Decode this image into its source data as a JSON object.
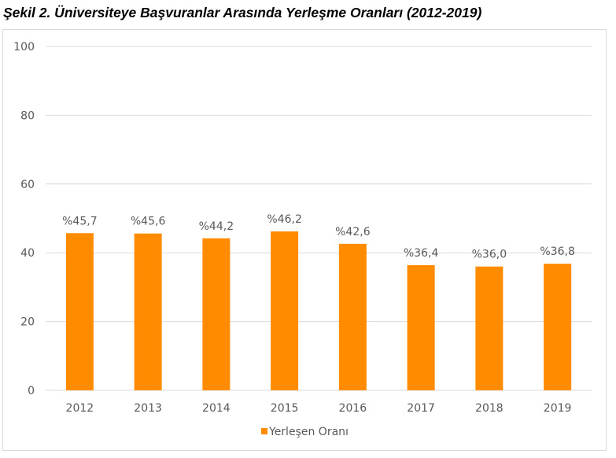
{
  "chart_data": {
    "type": "bar",
    "title": "Şekil 2. Üniversiteye Başvuranlar Arasında Yerleşme Oranları (2012-2019)",
    "categories": [
      "2012",
      "2013",
      "2014",
      "2015",
      "2016",
      "2017",
      "2018",
      "2019"
    ],
    "series": [
      {
        "name": "Yerleşen Oranı",
        "values": [
          45.7,
          45.6,
          44.2,
          46.2,
          42.6,
          36.4,
          36.0,
          36.8
        ],
        "color": "#FF8C00"
      }
    ],
    "data_labels": [
      "%45,7",
      "%45,6",
      "%44,2",
      "%46,2",
      "%42,6",
      "%36,4",
      "%36,0",
      "%36,8"
    ],
    "y_ticks": [
      "0",
      "20",
      "40",
      "60",
      "80",
      "100"
    ],
    "ylim": [
      0,
      100
    ],
    "xlabel": "",
    "ylabel": "",
    "grid": true,
    "legend_position": "bottom"
  }
}
